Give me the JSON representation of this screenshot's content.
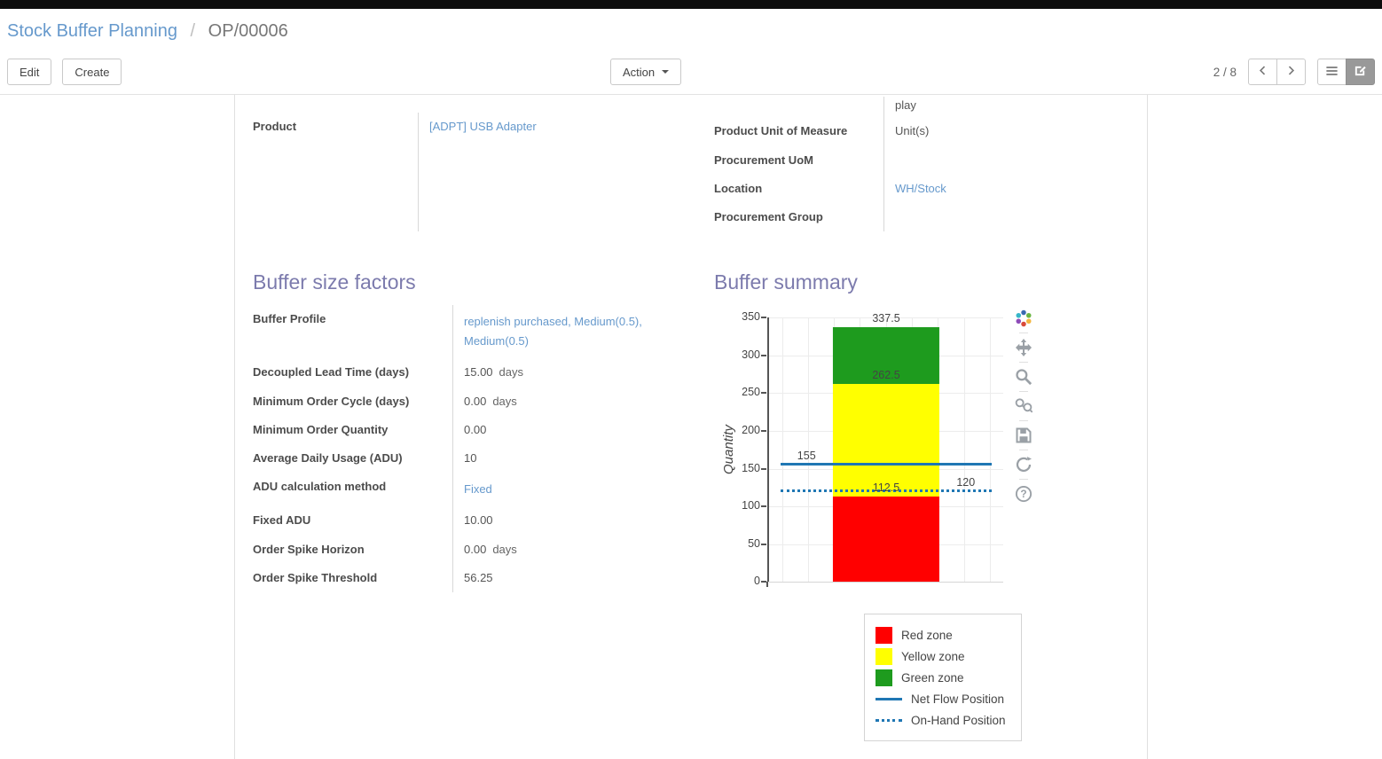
{
  "breadcrumb": {
    "parent": "Stock Buffer Planning",
    "separator": "/",
    "current": "OP/00006"
  },
  "control_panel": {
    "edit_label": "Edit",
    "create_label": "Create",
    "action_label": "Action",
    "pager": "2 / 8",
    "active_view": "form-view"
  },
  "form": {
    "top_left": {
      "rows": [
        {
          "key": "product",
          "label": "Product",
          "value": "[ADPT] USB Adapter",
          "suffix": "",
          "link": true
        }
      ]
    },
    "top_right": {
      "rows": [
        {
          "key": "clipped-row",
          "label": "",
          "value": "play",
          "suffix": "",
          "link": false
        },
        {
          "key": "product-uom",
          "label": "Product Unit of Measure",
          "value": "Unit(s)",
          "suffix": "",
          "link": false
        },
        {
          "key": "procurement-uom",
          "label": "Procurement UoM",
          "value": "",
          "suffix": "",
          "link": false
        },
        {
          "key": "location",
          "label": "Location",
          "value": "WH/Stock",
          "suffix": "",
          "link": true
        },
        {
          "key": "procurement-group",
          "label": "Procurement Group",
          "value": "",
          "suffix": "",
          "link": false
        }
      ]
    },
    "buffer_factors": {
      "title": "Buffer size factors",
      "rows": [
        {
          "key": "buffer-profile",
          "label": "Buffer Profile",
          "value": "replenish purchased, Medium(0.5), Medium(0.5)",
          "suffix": "",
          "link": true
        },
        {
          "key": "decoupled-lead-time",
          "label": "Decoupled Lead Time (days)",
          "value": "15.00",
          "suffix": "days",
          "link": false
        },
        {
          "key": "minimum-order-cycle",
          "label": "Minimum Order Cycle (days)",
          "value": "0.00",
          "suffix": "days",
          "link": false
        },
        {
          "key": "minimum-order-quantity",
          "label": "Minimum Order Quantity",
          "value": "0.00",
          "suffix": "",
          "link": false
        },
        {
          "key": "average-daily-usage",
          "label": "Average Daily Usage (ADU)",
          "value": "10",
          "suffix": "",
          "link": false
        },
        {
          "key": "adu-calculation-method",
          "label": "ADU calculation method",
          "value": "Fixed",
          "suffix": "",
          "link": true
        },
        {
          "key": "fixed-adu",
          "label": "Fixed ADU",
          "value": "10.00",
          "suffix": "",
          "link": false
        },
        {
          "key": "order-spike-horizon",
          "label": "Order Spike Horizon",
          "value": "0.00",
          "suffix": "days",
          "link": false
        },
        {
          "key": "order-spike-threshold",
          "label": "Order Spike Threshold",
          "value": "56.25",
          "suffix": "",
          "link": false
        }
      ]
    },
    "buffer_summary": {
      "title": "Buffer summary"
    }
  },
  "chart_data": {
    "type": "bar",
    "title": "",
    "xlabel": "",
    "ylabel": "Quantity",
    "ylim": [
      0,
      350
    ],
    "yticks": [
      0,
      50,
      100,
      150,
      200,
      250,
      300,
      350
    ],
    "grid": true,
    "zones": [
      {
        "name": "Red zone",
        "from": 0,
        "to": 112.5,
        "color": "#ff0000"
      },
      {
        "name": "Yellow zone",
        "from": 112.5,
        "to": 262.5,
        "color": "#ffff00"
      },
      {
        "name": "Green zone",
        "from": 262.5,
        "to": 337.5,
        "color": "#1e9b1e"
      }
    ],
    "lines": [
      {
        "name": "Net Flow Position",
        "value": 155,
        "style": "solid",
        "color": "#1f77b4"
      },
      {
        "name": "On-Hand Position",
        "value": 120,
        "style": "dotted",
        "color": "#1f77b4"
      }
    ],
    "annotations": [
      {
        "text": "337.5",
        "value": 337.5,
        "anchor": "bar-top"
      },
      {
        "text": "262.5",
        "value": 262.5,
        "anchor": "bar"
      },
      {
        "text": "155",
        "value": 155,
        "anchor": "left"
      },
      {
        "text": "112.5",
        "value": 112.5,
        "anchor": "bar"
      },
      {
        "text": "120",
        "value": 120,
        "anchor": "right"
      }
    ],
    "legend_position": "bottom-right",
    "legend": [
      {
        "name": "Red zone",
        "swatch": "square",
        "color": "#ff0000"
      },
      {
        "name": "Yellow zone",
        "swatch": "square",
        "color": "#ffff00"
      },
      {
        "name": "Green zone",
        "swatch": "square",
        "color": "#1e9b1e"
      },
      {
        "name": "Net Flow Position",
        "swatch": "line-solid",
        "color": "#1f77b4"
      },
      {
        "name": "On-Hand Position",
        "swatch": "line-dotted",
        "color": "#1f77b4"
      }
    ]
  },
  "chart_toolbar": {
    "icons": [
      "plotly-logo-icon",
      "pan-icon",
      "zoom-icon",
      "zoom-in-out-icon",
      "save-icon",
      "reset-axes-icon",
      "help-icon"
    ]
  },
  "colors": {
    "heading": "#7c7bad",
    "link": "#6699cc",
    "flow_line": "#1f77b4"
  }
}
